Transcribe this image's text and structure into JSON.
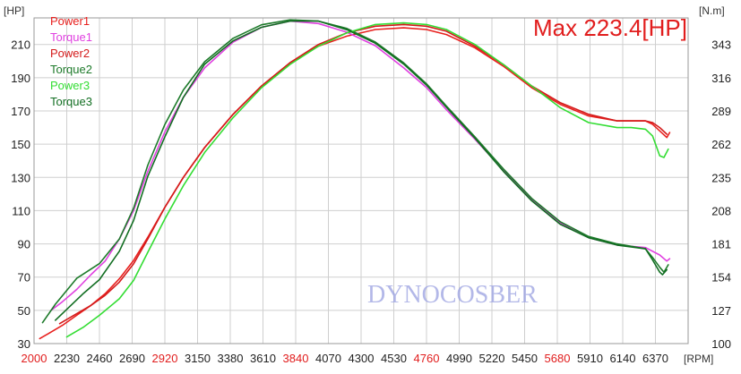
{
  "chart_data": {
    "type": "line",
    "max_label": "Max 223.4[HP]",
    "watermark": "DYNOCOSBER",
    "x_unit": "[RPM]",
    "y_left_unit": "[HP]",
    "y_right_unit": "[N.m]",
    "x_ticks": [
      "2000",
      "2230",
      "2460",
      "2690",
      "2920",
      "3150",
      "3380",
      "3610",
      "3840",
      "4070",
      "4300",
      "4530",
      "4760",
      "4990",
      "5220",
      "5450",
      "5680",
      "5910",
      "6140",
      "6370"
    ],
    "x_red_ticks": [
      "2000",
      "2920",
      "3840",
      "4760",
      "5680"
    ],
    "y_left_ticks": [
      "30",
      "50",
      "70",
      "90",
      "110",
      "130",
      "150",
      "170",
      "190",
      "210"
    ],
    "y_right_ticks": [
      "100",
      "127",
      "154",
      "181",
      "208",
      "235",
      "262",
      "289",
      "316",
      "343"
    ],
    "xlim": [
      2000,
      6600
    ],
    "ylim_left": [
      30,
      226
    ],
    "ylim_right": [
      100,
      364.6
    ],
    "grid": true,
    "legend_position": "top-left",
    "colors": {
      "axis_black": "#222222",
      "axis_red": "#e11d1d",
      "grid": "#cfcfcf"
    },
    "series": [
      {
        "name": "Power1",
        "axis": "left",
        "color": "#e8201e",
        "x": [
          2040,
          2100,
          2200,
          2300,
          2400,
          2500,
          2600,
          2700,
          2800,
          2920,
          3050,
          3200,
          3400,
          3600,
          3800,
          4000,
          4200,
          4400,
          4600,
          4760,
          4900,
          5100,
          5300,
          5500,
          5700,
          5900,
          6100,
          6300,
          6350,
          6400,
          6450,
          6470
        ],
        "y": [
          33,
          36,
          41,
          47,
          53,
          60,
          69,
          80,
          94,
          112,
          130,
          148,
          168,
          185,
          199,
          209,
          215,
          219,
          220,
          219,
          216,
          208,
          197,
          184,
          174,
          167,
          164,
          164,
          162,
          158,
          154,
          157
        ]
      },
      {
        "name": "Torque1",
        "axis": "right",
        "color": "#e040e0",
        "x": [
          2120,
          2200,
          2300,
          2400,
          2500,
          2600,
          2700,
          2800,
          2920,
          3050,
          3200,
          3400,
          3600,
          3800,
          4000,
          4200,
          4400,
          4600,
          4760,
          4900,
          5100,
          5300,
          5500,
          5700,
          5900,
          6100,
          6300,
          6400,
          6450,
          6470
        ],
        "y": [
          127,
          134,
          144,
          156,
          167,
          185,
          208,
          240,
          272,
          300,
          324,
          345,
          357,
          362,
          360,
          353,
          342,
          324,
          308,
          290,
          266,
          241,
          217,
          198,
          186,
          180,
          178,
          172,
          167,
          169
        ]
      },
      {
        "name": "Power2",
        "axis": "left",
        "color": "#d41a1a",
        "x": [
          2180,
          2300,
          2400,
          2500,
          2600,
          2700,
          2800,
          2920,
          3050,
          3200,
          3400,
          3600,
          3800,
          4000,
          4200,
          4400,
          4600,
          4760,
          4900,
          5100,
          5300,
          5500,
          5700,
          5900,
          6100,
          6300,
          6350,
          6400,
          6450
        ],
        "y": [
          42,
          48,
          53,
          59,
          67,
          78,
          93,
          112,
          130,
          148,
          168,
          185,
          199,
          210,
          217,
          221,
          222,
          221,
          218,
          209,
          198,
          185,
          175,
          168,
          164,
          164,
          163,
          160,
          156
        ]
      },
      {
        "name": "Torque2",
        "axis": "right",
        "color": "#1d7a2a",
        "x": [
          2060,
          2150,
          2300,
          2460,
          2600,
          2700,
          2800,
          2920,
          3050,
          3200,
          3400,
          3600,
          3800,
          4000,
          4200,
          4400,
          4600,
          4760,
          4900,
          5100,
          5300,
          5500,
          5700,
          5900,
          6100,
          6300,
          6350,
          6400,
          6430,
          6460
        ],
        "y": [
          117,
          132,
          153,
          165,
          185,
          210,
          245,
          278,
          306,
          329,
          348,
          359,
          363,
          362,
          356,
          345,
          328,
          311,
          293,
          268,
          242,
          218,
          199,
          187,
          181,
          177,
          170,
          162,
          158,
          164
        ]
      },
      {
        "name": "Power3",
        "axis": "left",
        "color": "#33dd33",
        "x": [
          2230,
          2350,
          2460,
          2600,
          2700,
          2800,
          2920,
          3050,
          3200,
          3400,
          3600,
          3800,
          4000,
          4200,
          4400,
          4600,
          4760,
          4900,
          5100,
          5300,
          5500,
          5700,
          5900,
          6100,
          6200,
          6300,
          6350,
          6400,
          6430,
          6460
        ],
        "y": [
          34,
          40,
          47,
          57,
          68,
          85,
          105,
          125,
          145,
          166,
          184,
          198,
          209,
          217,
          222,
          223,
          222,
          219,
          210,
          198,
          185,
          172,
          163,
          160,
          160,
          159,
          155,
          143,
          142,
          147
        ]
      },
      {
        "name": "Torque3",
        "axis": "right",
        "color": "#126e22",
        "x": [
          2150,
          2250,
          2350,
          2460,
          2600,
          2700,
          2800,
          2920,
          3050,
          3200,
          3400,
          3600,
          3800,
          4000,
          4200,
          4400,
          4600,
          4760,
          4900,
          5100,
          5300,
          5500,
          5700,
          5900,
          6100,
          6300,
          6350,
          6400,
          6420,
          6450
        ],
        "y": [
          119,
          130,
          141,
          152,
          175,
          200,
          236,
          268,
          300,
          327,
          346,
          357,
          362,
          362,
          355,
          344,
          327,
          310,
          292,
          267,
          240,
          216,
          197,
          186,
          180,
          177,
          168,
          158,
          156,
          160
        ]
      }
    ]
  }
}
